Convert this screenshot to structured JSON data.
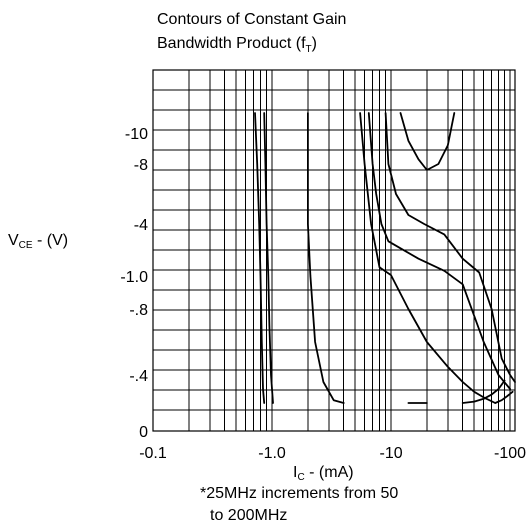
{
  "chart_data": {
    "type": "line",
    "title": [
      "Contours of Constant Gain",
      "Bandwidth Product (f",
      ")"
    ],
    "title_subscript": "T",
    "xlabel": {
      "main": "I",
      "sub": "C",
      "rest": " - (mA)"
    },
    "ylabel": {
      "main": "V",
      "sub": "CE",
      "rest": " - (V)"
    },
    "x_scale": "log",
    "y_scale": "nonlinear (printed tick labels only)",
    "x_ticks": [
      {
        "value": 0.1,
        "label": "-0.1"
      },
      {
        "value": 1,
        "label": "-1.0"
      },
      {
        "value": 10,
        "label": "-10"
      },
      {
        "value": 100,
        "label": "-100"
      }
    ],
    "y_ticks": [
      {
        "value": 0,
        "label": "0"
      },
      {
        "value": 0.4,
        "label": "-.4"
      },
      {
        "value": 0.8,
        "label": "-.8"
      },
      {
        "value": 1.0,
        "label": "-1.0"
      },
      {
        "value": 4,
        "label": "-4"
      },
      {
        "value": 8,
        "label": "-8"
      },
      {
        "value": 10,
        "label": "-10"
      }
    ],
    "xlim": [
      0.1,
      110
    ],
    "note": [
      "*25MHz increments from 50",
      "to 200MHz"
    ],
    "grid": true,
    "series": [
      {
        "points": [
          [
            0.72,
            11
          ],
          [
            0.75,
            8
          ],
          [
            0.78,
            4
          ],
          [
            0.8,
            1.0
          ],
          [
            0.82,
            0.6
          ],
          [
            0.84,
            0.3
          ],
          [
            0.86,
            0.2
          ]
        ]
      },
      {
        "points": [
          [
            0.86,
            11
          ],
          [
            0.88,
            8
          ],
          [
            0.9,
            4
          ],
          [
            0.93,
            1.0
          ],
          [
            0.95,
            0.7
          ],
          [
            0.98,
            0.4
          ],
          [
            1.02,
            0.2
          ]
        ]
      },
      {
        "points": [
          [
            2.0,
            11
          ],
          [
            2.0,
            4
          ],
          [
            2.1,
            1.0
          ],
          [
            2.3,
            0.6
          ],
          [
            2.7,
            0.35
          ],
          [
            3.3,
            0.22
          ],
          [
            4.0,
            0.2
          ]
        ]
      },
      {
        "points": [
          [
            5.5,
            11
          ],
          [
            6.0,
            8
          ],
          [
            6.8,
            4
          ],
          [
            8.0,
            1.5
          ],
          [
            10.0,
            1.05
          ],
          [
            14.0,
            0.8
          ],
          [
            20.0,
            0.6
          ],
          [
            30.0,
            0.45
          ],
          [
            40.0,
            0.35
          ],
          [
            50.0,
            0.28
          ],
          [
            60.0,
            0.24
          ],
          [
            75.0,
            0.2
          ]
        ]
      },
      {
        "points": [
          [
            6.5,
            11
          ],
          [
            7.0,
            8
          ],
          [
            7.5,
            6
          ],
          [
            8.3,
            4
          ],
          [
            9.5,
            3
          ],
          [
            12.0,
            2.6
          ],
          [
            17.0,
            2.0
          ],
          [
            28.0,
            1.3
          ],
          [
            40.0,
            0.95
          ],
          [
            60.0,
            0.6
          ],
          [
            80.0,
            0.4
          ],
          [
            100.0,
            0.3
          ]
        ]
      },
      {
        "points": [
          [
            9.0,
            11
          ],
          [
            9.5,
            8
          ],
          [
            11.0,
            6
          ],
          [
            14.0,
            4.6
          ],
          [
            19.0,
            4.0
          ],
          [
            28.0,
            3.4
          ],
          [
            40.0,
            2.0
          ],
          [
            55.0,
            1.2
          ],
          [
            70.0,
            0.8
          ],
          [
            85.0,
            0.5
          ],
          [
            100.0,
            0.4
          ],
          [
            110.0,
            0.35
          ]
        ]
      },
      {
        "points": [
          [
            12.0,
            11
          ],
          [
            14.0,
            9.5
          ],
          [
            17.0,
            8.3
          ],
          [
            20.0,
            7.6
          ],
          [
            25.0,
            8.0
          ],
          [
            30.0,
            9.2
          ],
          [
            34.0,
            11
          ]
        ]
      },
      {
        "points": [
          [
            14.0,
            0.2
          ],
          [
            18.0,
            0.2
          ],
          [
            20.0,
            0.2
          ]
        ]
      },
      {
        "points": [
          [
            40.0,
            0.2
          ],
          [
            50.0,
            0.21
          ],
          [
            60.0,
            0.23
          ],
          [
            70.0,
            0.26
          ],
          [
            80.0,
            0.3
          ],
          [
            90.0,
            0.36
          ]
        ]
      },
      {
        "points": [
          [
            75.0,
            0.2
          ],
          [
            85.0,
            0.22
          ],
          [
            95.0,
            0.25
          ],
          [
            105.0,
            0.28
          ]
        ]
      }
    ]
  }
}
